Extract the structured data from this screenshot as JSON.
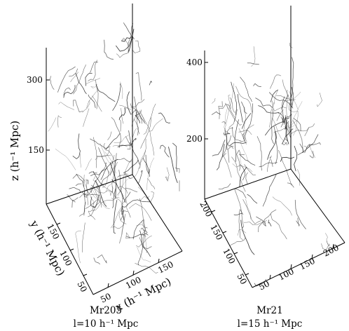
{
  "chart_data": [
    {
      "type": "scatter",
      "projection": "3d",
      "xlabel": "x (h⁻¹ Mpc)",
      "ylabel": "y (h⁻¹ Mpc)",
      "zlabel": "z (h⁻¹ Mpc)",
      "x_ticks": [
        "50",
        "100",
        "150"
      ],
      "y_ticks": [
        "50",
        "100",
        "150"
      ],
      "z_ticks": [
        "150",
        "300"
      ],
      "xlim": [
        0,
        180
      ],
      "ylim": [
        0,
        180
      ],
      "zlim": [
        0,
        420
      ],
      "caption_line1": "Mr205",
      "caption_line2": "l=10 h⁻¹ Mpc",
      "line_color": "#222222",
      "seed": 7,
      "n_filaments": 185
    },
    {
      "type": "scatter",
      "projection": "3d",
      "x_ticks": [
        "50",
        "100",
        "150",
        "200"
      ],
      "y_ticks": [
        "50",
        "100",
        "150",
        "200"
      ],
      "z_ticks": [
        "200",
        "400"
      ],
      "xlim": [
        0,
        220
      ],
      "ylim": [
        0,
        220
      ],
      "zlim": [
        0,
        450
      ],
      "caption_line1": "Mr21",
      "caption_line2": "l=15 h⁻¹ Mpc",
      "line_color": "#222222",
      "seed": 23,
      "n_filaments": 130
    }
  ]
}
